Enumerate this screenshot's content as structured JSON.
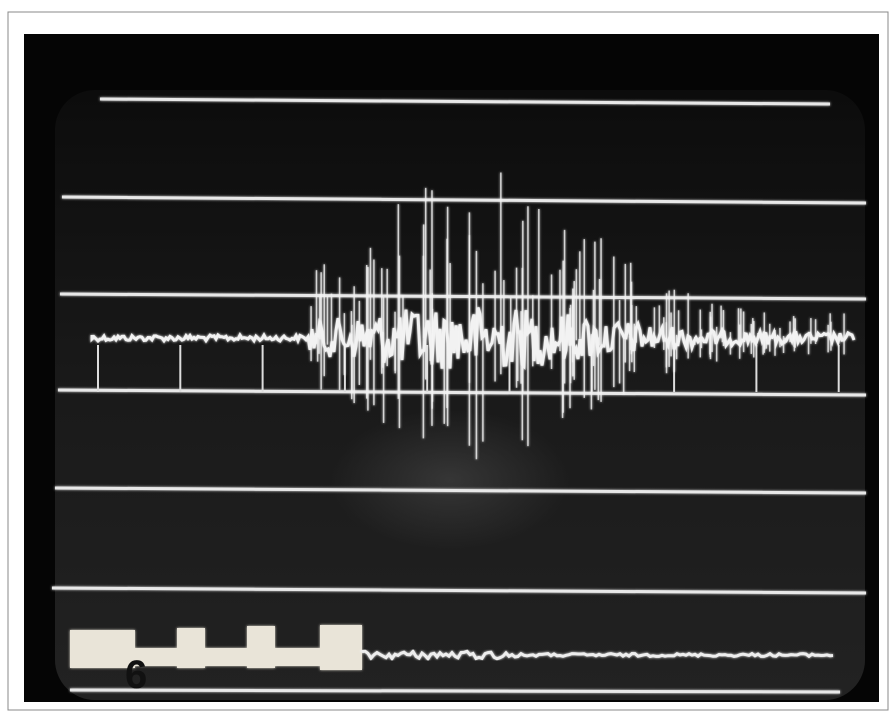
{
  "screen": {
    "label": "6"
  }
}
